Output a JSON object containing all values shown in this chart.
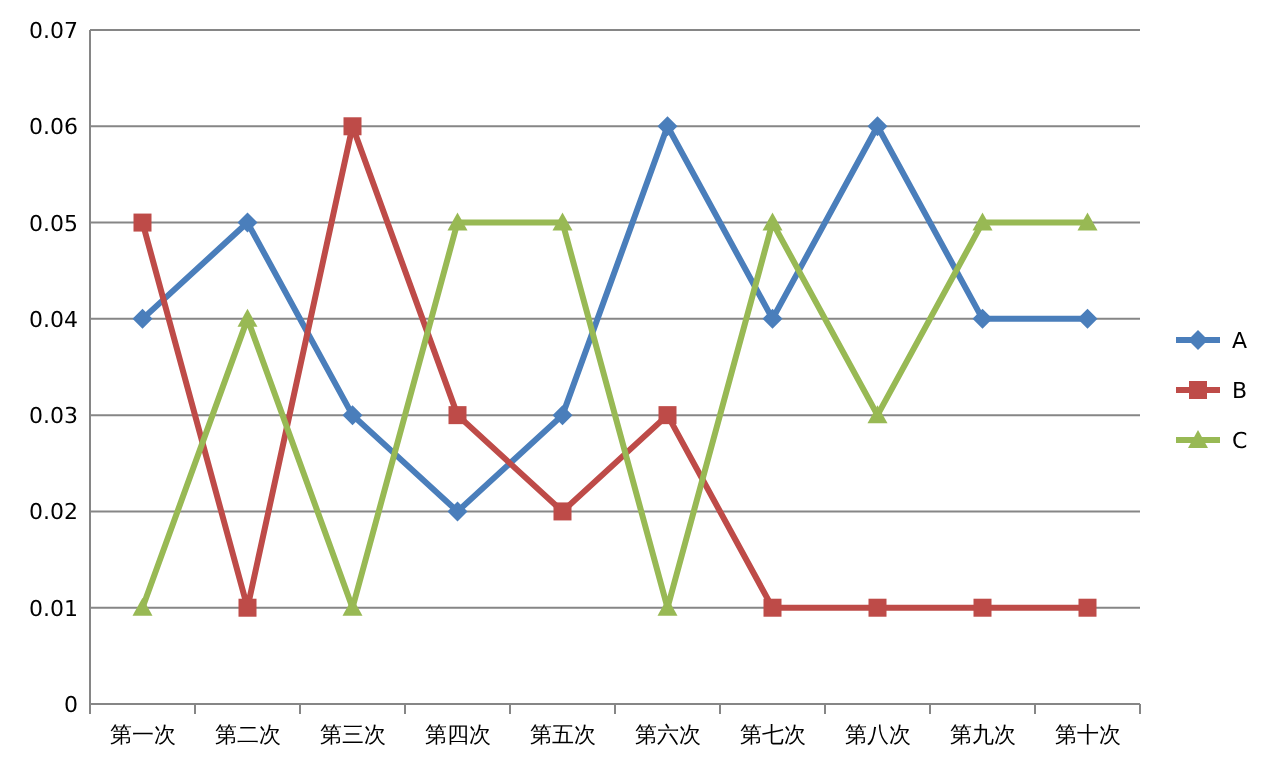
{
  "chart_data": {
    "type": "line",
    "categories": [
      "第一次",
      "第二次",
      "第三次",
      "第四次",
      "第五次",
      "第六次",
      "第七次",
      "第八次",
      "第九次",
      "第十次"
    ],
    "series": [
      {
        "name": "A",
        "color": "#4a7ebb",
        "marker": "diamond",
        "values": [
          0.04,
          0.05,
          0.03,
          0.02,
          0.03,
          0.06,
          0.04,
          0.06,
          0.04,
          0.04
        ]
      },
      {
        "name": "B",
        "color": "#be4b48",
        "marker": "square",
        "values": [
          0.05,
          0.01,
          0.06,
          0.03,
          0.02,
          0.03,
          0.01,
          0.01,
          0.01,
          0.01
        ]
      },
      {
        "name": "C",
        "color": "#98b954",
        "marker": "triangle",
        "values": [
          0.01,
          0.04,
          0.01,
          0.05,
          0.05,
          0.01,
          0.05,
          0.03,
          0.05,
          0.05
        ]
      }
    ],
    "ylim": [
      0,
      0.07
    ],
    "yticks": [
      0,
      0.01,
      0.02,
      0.03,
      0.04,
      0.05,
      0.06,
      0.07
    ],
    "grid": "y",
    "legend": "right"
  }
}
